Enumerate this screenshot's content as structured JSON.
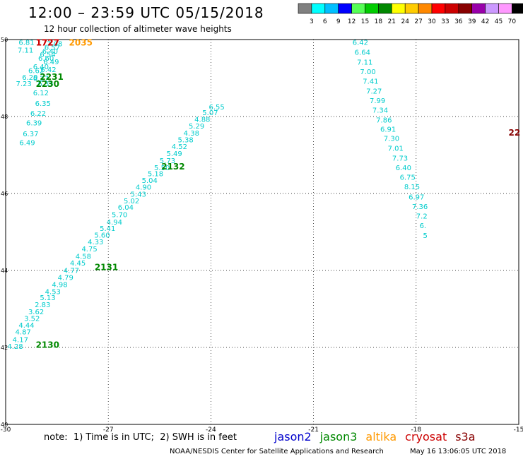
{
  "header": {
    "title": "12:00 – 23:59 UTC 05/15/2018",
    "subtitle": "12 hour collection of altimeter wave heights"
  },
  "color_scale": {
    "labels": [
      "3",
      "6",
      "9",
      "12",
      "15",
      "18",
      "21",
      "24",
      "27",
      "30",
      "33",
      "36",
      "39",
      "42",
      "45",
      "70"
    ],
    "unit": "(ft)",
    "colors": [
      "#808080",
      "#00ffff",
      "#00bfff",
      "#0000ff",
      "#55ff55",
      "#00cc00",
      "#008800",
      "#ffff00",
      "#ffcc00",
      "#ff8800",
      "#ff0000",
      "#cc0000",
      "#880000",
      "#9900aa",
      "#cc99ff",
      "#ff99ff",
      "#000000"
    ]
  },
  "satellites": [
    {
      "name": "jason2",
      "color": "#0000cc"
    },
    {
      "name": "jason3",
      "color": "#008800"
    },
    {
      "name": "altika",
      "color": "#ff9900"
    },
    {
      "name": "cryosat",
      "color": "#cc0000"
    },
    {
      "name": "s3a",
      "color": "#880000"
    }
  ],
  "footer": {
    "note": "note:  1) Time is in UTC;  2) SWH is in feet",
    "credit": "NOAA/NESDIS Center for Satellite Applications and Research",
    "timestamp": "May 16 13:06:05 UTC 2018"
  },
  "chart_data": {
    "type": "scatter",
    "xlim": [
      -30,
      -15
    ],
    "ylim": [
      40,
      50
    ],
    "x_ticks": [
      "-30",
      "-27",
      "-24",
      "-21",
      "-18",
      "-15"
    ],
    "y_ticks": [
      "40",
      "42",
      "44",
      "46",
      "48",
      "50"
    ],
    "grid": true,
    "value_color": "#00cccc",
    "swh_points": [
      [
        -29.62,
        49.94,
        "6.81"
      ],
      [
        -29.65,
        49.73,
        "7.11"
      ],
      [
        -28.8,
        49.9,
        "7.08"
      ],
      [
        -28.87,
        49.81,
        "6.57"
      ],
      [
        -28.93,
        49.71,
        "6.40"
      ],
      [
        -29.0,
        49.62,
        "6.54"
      ],
      [
        -29.05,
        49.52,
        "6.60"
      ],
      [
        -28.9,
        49.43,
        "6.49"
      ],
      [
        -29.2,
        49.3,
        "6.40"
      ],
      [
        -28.98,
        49.23,
        "6.42"
      ],
      [
        -29.34,
        49.2,
        "6.62"
      ],
      [
        -29.52,
        49.03,
        "6.29"
      ],
      [
        -29.7,
        48.86,
        "7.23"
      ],
      [
        -29.2,
        49.0,
        "6.27"
      ],
      [
        -29.06,
        48.86,
        "6.35"
      ],
      [
        -29.2,
        48.62,
        "6.12"
      ],
      [
        -29.14,
        48.35,
        "6.35"
      ],
      [
        -29.28,
        48.09,
        "6.22"
      ],
      [
        -29.4,
        47.84,
        "6.39"
      ],
      [
        -29.5,
        47.56,
        "6.37"
      ],
      [
        -29.6,
        47.33,
        "6.49"
      ],
      [
        -24.06,
        48.26,
        "6.55"
      ],
      [
        -24.25,
        48.11,
        "5.07"
      ],
      [
        -24.48,
        47.94,
        "4.88"
      ],
      [
        -24.65,
        47.76,
        "5.29"
      ],
      [
        -24.8,
        47.58,
        "4.38"
      ],
      [
        -24.97,
        47.4,
        "5.38"
      ],
      [
        -25.15,
        47.23,
        "4.52"
      ],
      [
        -25.3,
        47.05,
        "5.49"
      ],
      [
        -25.5,
        46.86,
        "5.73"
      ],
      [
        -25.66,
        46.68,
        "5.50"
      ],
      [
        -25.85,
        46.52,
        "5.18"
      ],
      [
        -26.02,
        46.35,
        "5.04"
      ],
      [
        -26.2,
        46.17,
        "4.90"
      ],
      [
        -26.35,
        45.99,
        "5.43"
      ],
      [
        -26.55,
        45.82,
        "5.02"
      ],
      [
        -26.72,
        45.65,
        "6.04"
      ],
      [
        -26.9,
        45.46,
        "5.70"
      ],
      [
        -27.05,
        45.27,
        "4.94"
      ],
      [
        -27.25,
        45.1,
        "5.41"
      ],
      [
        -27.41,
        44.93,
        "5.60"
      ],
      [
        -27.6,
        44.75,
        "4.33"
      ],
      [
        -27.78,
        44.57,
        "4.75"
      ],
      [
        -27.96,
        44.38,
        "4.58"
      ],
      [
        -28.12,
        44.2,
        "4.45"
      ],
      [
        -28.31,
        44.01,
        "4.77"
      ],
      [
        -28.48,
        43.83,
        "4.79"
      ],
      [
        -28.65,
        43.64,
        "4.98"
      ],
      [
        -28.85,
        43.46,
        "4.53"
      ],
      [
        -29.0,
        43.3,
        "5.13"
      ],
      [
        -29.15,
        43.12,
        "2.83"
      ],
      [
        -29.34,
        42.94,
        "3.62"
      ],
      [
        -29.46,
        42.76,
        "3.52"
      ],
      [
        -29.62,
        42.59,
        "4.44"
      ],
      [
        -29.72,
        42.41,
        "4.87"
      ],
      [
        -29.8,
        42.21,
        "4.17"
      ],
      [
        -29.95,
        42.04,
        "4.28"
      ],
      [
        -19.86,
        49.94,
        "6.42"
      ],
      [
        -19.8,
        49.68,
        "6.64"
      ],
      [
        -19.73,
        49.42,
        "7.11"
      ],
      [
        -19.64,
        49.17,
        "7.00"
      ],
      [
        -19.56,
        48.93,
        "7.41"
      ],
      [
        -19.46,
        48.67,
        "7.27"
      ],
      [
        -19.36,
        48.42,
        "7.99"
      ],
      [
        -19.28,
        48.17,
        "7.34"
      ],
      [
        -19.17,
        47.92,
        "7.86"
      ],
      [
        -19.05,
        47.68,
        "6.91"
      ],
      [
        -18.95,
        47.44,
        "7.30"
      ],
      [
        -18.83,
        47.18,
        "7.01"
      ],
      [
        -18.7,
        46.93,
        "7.73"
      ],
      [
        -18.6,
        46.68,
        "6.40"
      ],
      [
        -18.48,
        46.43,
        "6.75"
      ],
      [
        -18.35,
        46.18,
        "8.15"
      ],
      [
        -18.22,
        45.92,
        "6.97"
      ],
      [
        -18.12,
        45.67,
        "7.36"
      ],
      [
        -18.0,
        45.42,
        "7.2"
      ],
      [
        -17.9,
        45.17,
        "6."
      ],
      [
        -17.8,
        44.92,
        "5"
      ]
    ],
    "time_labels": [
      [
        -29.12,
        49.94,
        "1727",
        "#cc0000"
      ],
      [
        -29.12,
        49.94,
        "1727",
        "#cc0000"
      ],
      [
        -28.15,
        49.94,
        "2035",
        "#ff9900"
      ],
      [
        -29.0,
        49.05,
        "2231",
        "#008800"
      ],
      [
        -29.12,
        48.86,
        "2230",
        "#008800"
      ],
      [
        -25.45,
        46.72,
        "2132",
        "#008800"
      ],
      [
        -27.4,
        44.1,
        "2131",
        "#008800"
      ],
      [
        -29.12,
        42.08,
        "2130",
        "#008800"
      ],
      [
        -15.3,
        47.6,
        "22",
        "#880000"
      ]
    ]
  }
}
